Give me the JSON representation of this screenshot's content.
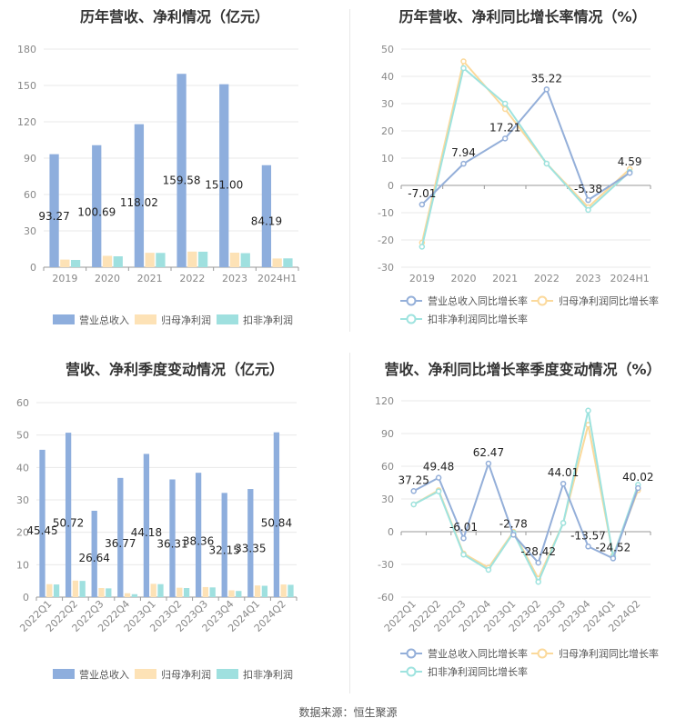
{
  "source_label": "数据来源：恒生聚源",
  "colors": {
    "revenue": "#8eaedd",
    "parent": "#fde2b6",
    "deduct": "#9fe0df",
    "rev_line": "#94afd9",
    "parent_line": "#fbd99b",
    "deduct_line": "#9ee3df",
    "grid": "#e8e8e8",
    "axis_text": "#888888"
  },
  "chart_data": [
    {
      "id": "annual-bar",
      "type": "bar",
      "title": "历年营收、净利情况（亿元）",
      "categories": [
        "2019",
        "2020",
        "2021",
        "2022",
        "2023",
        "2024H1"
      ],
      "series": [
        {
          "name": "营业总收入",
          "values": [
            93.27,
            100.69,
            118.02,
            159.58,
            151.0,
            84.19
          ],
          "labels": [
            "93.27",
            "100.69",
            "118.02",
            "159.58",
            "151.00",
            "84.19"
          ]
        },
        {
          "name": "归母净利润",
          "values": [
            6.3,
            9.4,
            11.9,
            12.9,
            12.0,
            7.2
          ]
        },
        {
          "name": "扣非净利润",
          "values": [
            6.0,
            9.0,
            11.8,
            12.8,
            11.6,
            7.3
          ]
        }
      ],
      "yticks": [
        "0",
        "30",
        "60",
        "90",
        "120",
        "150",
        "180"
      ],
      "ylim": [
        0,
        180
      ]
    },
    {
      "id": "annual-line",
      "type": "line",
      "title": "历年营收、净利同比增长率情况（%）",
      "categories": [
        "2019",
        "2020",
        "2021",
        "2022",
        "2023",
        "2024H1"
      ],
      "series": [
        {
          "name": "营业总收入同比增长率",
          "values": [
            -7.01,
            7.94,
            17.21,
            35.22,
            -5.38,
            4.59
          ],
          "labels": [
            "-7.01",
            "7.94",
            "17.21",
            "35.22",
            "-5.38",
            "4.59"
          ]
        },
        {
          "name": "归母净利润同比增长率",
          "values": [
            -21.0,
            45.5,
            28.0,
            8.0,
            -8.0,
            6.0
          ]
        },
        {
          "name": "扣非净利润同比增长率",
          "values": [
            -22.5,
            43.0,
            30.0,
            8.0,
            -9.0,
            5.0
          ]
        }
      ],
      "yticks": [
        "-30",
        "-20",
        "-10",
        "0",
        "10",
        "20",
        "30",
        "40",
        "50"
      ],
      "ylim": [
        -30,
        50
      ]
    },
    {
      "id": "quarter-bar",
      "type": "bar",
      "title": "营收、净利季度变动情况（亿元）",
      "categories": [
        "2022Q1",
        "2022Q2",
        "2022Q3",
        "2022Q4",
        "2023Q1",
        "2023Q2",
        "2023Q3",
        "2023Q4",
        "2024Q1",
        "2024Q2"
      ],
      "series": [
        {
          "name": "营业总收入",
          "values": [
            45.45,
            50.72,
            26.64,
            36.77,
            44.18,
            36.31,
            38.36,
            32.15,
            33.35,
            50.84
          ],
          "labels": [
            "45.45",
            "50.72",
            "26.64",
            "36.77",
            "44.18",
            "36.31",
            "38.36",
            "32.15",
            "33.35",
            "50.84"
          ]
        },
        {
          "name": "归母净利润",
          "values": [
            4.0,
            5.1,
            2.8,
            1.2,
            4.1,
            2.9,
            3.1,
            2.1,
            3.6,
            3.9
          ]
        },
        {
          "name": "扣非净利润",
          "values": [
            3.9,
            5.0,
            2.7,
            0.9,
            4.0,
            2.8,
            3.0,
            1.9,
            3.5,
            3.8
          ]
        }
      ],
      "yticks": [
        "0",
        "10",
        "20",
        "30",
        "40",
        "50",
        "60"
      ],
      "ylim": [
        0,
        60
      ]
    },
    {
      "id": "quarter-line",
      "type": "line",
      "title": "营收、净利同比增长率季度变动情况（%）",
      "categories": [
        "2022Q1",
        "2022Q2",
        "2022Q3",
        "2022Q4",
        "2023Q1",
        "2023Q2",
        "2023Q3",
        "2023Q4",
        "2024Q1",
        "2024Q2"
      ],
      "series": [
        {
          "name": "营业总收入同比增长率",
          "values": [
            37.25,
            49.48,
            -6.01,
            62.47,
            -2.78,
            -28.42,
            44.01,
            -13.57,
            -24.52,
            40.02
          ],
          "labels": [
            "37.25",
            "49.48",
            "-6.01",
            "62.47",
            "-2.78",
            "-28.42",
            "44.01",
            "-13.57",
            "-24.52",
            "40.02"
          ]
        },
        {
          "name": "归母净利润同比增长率",
          "values": [
            25.0,
            38.0,
            -20.0,
            -33.0,
            0.0,
            -43.0,
            8.0,
            98.0,
            -22.0,
            38.0
          ]
        },
        {
          "name": "扣非净利润同比增长率",
          "values": [
            25.0,
            37.0,
            -21.0,
            -35.0,
            -1.0,
            -46.0,
            8.0,
            111.0,
            -23.0,
            43.0
          ]
        }
      ],
      "yticks": [
        "-60",
        "-30",
        "0",
        "30",
        "60",
        "90",
        "120"
      ],
      "ylim": [
        -60,
        120
      ]
    }
  ]
}
